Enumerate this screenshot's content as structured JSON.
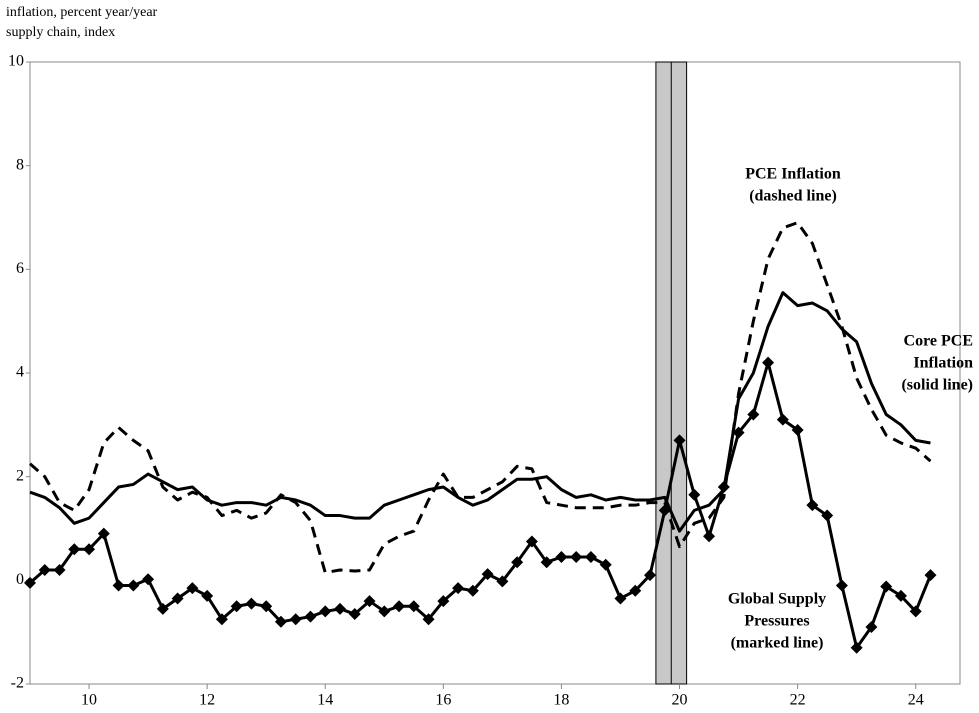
{
  "chart_data": {
    "type": "line",
    "y_label_lines": [
      "inflation, percent year/year",
      "supply chain, index"
    ],
    "x": [
      9.0,
      9.25,
      9.5,
      9.75,
      10.0,
      10.25,
      10.5,
      10.75,
      11.0,
      11.25,
      11.5,
      11.75,
      12.0,
      12.25,
      12.5,
      12.75,
      13.0,
      13.25,
      13.5,
      13.75,
      14.0,
      14.25,
      14.5,
      14.75,
      15.0,
      15.25,
      15.5,
      15.75,
      16.0,
      16.25,
      16.5,
      16.75,
      17.0,
      17.25,
      17.5,
      17.75,
      18.0,
      18.25,
      18.5,
      18.75,
      19.0,
      19.25,
      19.5,
      19.75,
      20.0,
      20.25,
      20.5,
      20.75,
      21.0,
      21.25,
      21.5,
      21.75,
      22.0,
      22.25,
      22.5,
      22.75,
      23.0,
      23.25,
      23.5,
      23.75,
      24.0,
      24.25
    ],
    "series": [
      {
        "style": "dashed",
        "color": "#000000",
        "values": [
          2.25,
          2.0,
          1.5,
          1.35,
          1.75,
          2.65,
          2.95,
          2.7,
          2.5,
          1.8,
          1.55,
          1.7,
          1.6,
          1.25,
          1.35,
          1.2,
          1.3,
          1.65,
          1.5,
          1.15,
          0.15,
          0.2,
          0.18,
          0.2,
          0.7,
          0.85,
          0.95,
          1.55,
          2.05,
          1.6,
          1.6,
          1.75,
          1.9,
          2.2,
          2.15,
          1.5,
          1.45,
          1.4,
          1.4,
          1.4,
          1.45,
          1.45,
          1.5,
          1.5,
          0.65,
          1.1,
          1.2,
          1.6,
          3.6,
          5.0,
          6.2,
          6.8,
          6.9,
          6.5,
          5.7,
          4.9,
          3.9,
          3.3,
          2.8,
          2.65,
          2.55,
          2.3
        ]
      },
      {
        "style": "solid",
        "color": "#000000",
        "values": [
          1.7,
          1.6,
          1.4,
          1.1,
          1.2,
          1.5,
          1.8,
          1.85,
          2.05,
          1.9,
          1.75,
          1.8,
          1.55,
          1.45,
          1.5,
          1.5,
          1.45,
          1.6,
          1.55,
          1.45,
          1.25,
          1.25,
          1.2,
          1.2,
          1.45,
          1.55,
          1.65,
          1.75,
          1.8,
          1.6,
          1.45,
          1.55,
          1.75,
          1.95,
          1.95,
          2.0,
          1.75,
          1.6,
          1.65,
          1.55,
          1.6,
          1.55,
          1.55,
          1.6,
          0.95,
          1.35,
          1.45,
          1.75,
          3.5,
          4.0,
          4.9,
          5.55,
          5.3,
          5.35,
          5.2,
          4.85,
          4.6,
          3.8,
          3.2,
          3.0,
          2.7,
          2.65
        ]
      },
      {
        "style": "solid",
        "marker": "diamond",
        "color": "#000000",
        "values": [
          -0.05,
          0.2,
          0.2,
          0.6,
          0.6,
          0.9,
          -0.1,
          -0.1,
          0.02,
          -0.55,
          -0.35,
          -0.15,
          -0.3,
          -0.75,
          -0.5,
          -0.45,
          -0.5,
          -0.8,
          -0.75,
          -0.7,
          -0.6,
          -0.55,
          -0.65,
          -0.4,
          -0.6,
          -0.5,
          -0.5,
          -0.75,
          -0.4,
          -0.15,
          -0.2,
          0.12,
          -0.02,
          0.35,
          0.75,
          0.35,
          0.45,
          0.45,
          0.45,
          0.3,
          -0.35,
          -0.2,
          0.1,
          1.35,
          2.7,
          1.65,
          0.85,
          1.8,
          2.85,
          3.2,
          4.2,
          3.1,
          2.9,
          1.45,
          1.25,
          -0.1,
          -1.3,
          -0.9,
          -0.12,
          -0.3,
          -0.6,
          0.1
        ]
      }
    ],
    "annotations": [
      {
        "lines": [
          "PCE Inflation",
          "(dashed line)"
        ]
      },
      {
        "lines": [
          "Core PCE",
          "Inflation",
          "(solid line)"
        ]
      },
      {
        "lines": [
          "Global Supply",
          "Pressures",
          "(marked line)"
        ]
      }
    ],
    "recession": [
      19.6,
      20.12
    ],
    "xlim": [
      9.0,
      24.75
    ],
    "xticks": [
      10,
      12,
      14,
      16,
      18,
      20,
      22,
      24
    ],
    "ylim": [
      -2,
      10
    ],
    "yticks": [
      -2,
      0,
      2,
      4,
      6,
      8,
      10
    ]
  }
}
